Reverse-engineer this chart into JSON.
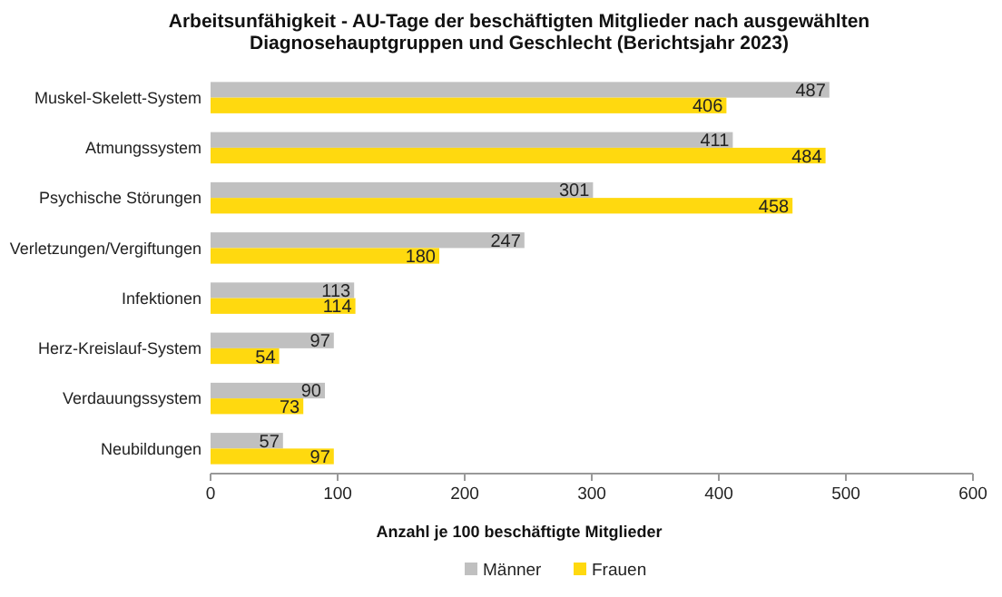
{
  "chart_data": {
    "type": "bar",
    "orientation": "horizontal",
    "title": "Arbeitsunfähigkeit - AU-Tage der beschäftigten Mitglieder nach ausgewählten Diagnosehauptgruppen und Geschlecht (Berichtsjahr 2023)",
    "xlabel": "Anzahl je 100 beschäftigte Mitglieder",
    "categories": [
      "Muskel-Skelett-System",
      "Atmungssystem",
      "Psychische Störungen",
      "Verletzungen/Vergiftungen",
      "Infektionen",
      "Herz-Kreislauf-System",
      "Verdauungssystem",
      "Neubildungen"
    ],
    "series": [
      {
        "name": "Männer",
        "color": "#c0c0c0",
        "values": [
          487,
          411,
          301,
          247,
          113,
          97,
          90,
          57
        ]
      },
      {
        "name": "Frauen",
        "color": "#ffd90f",
        "values": [
          406,
          484,
          458,
          180,
          114,
          54,
          73,
          97
        ]
      }
    ],
    "xlim": [
      0,
      600
    ],
    "xticks": [
      0,
      100,
      200,
      300,
      400,
      500,
      600
    ],
    "data_labels": true,
    "grid": false,
    "legend": "bottom"
  }
}
